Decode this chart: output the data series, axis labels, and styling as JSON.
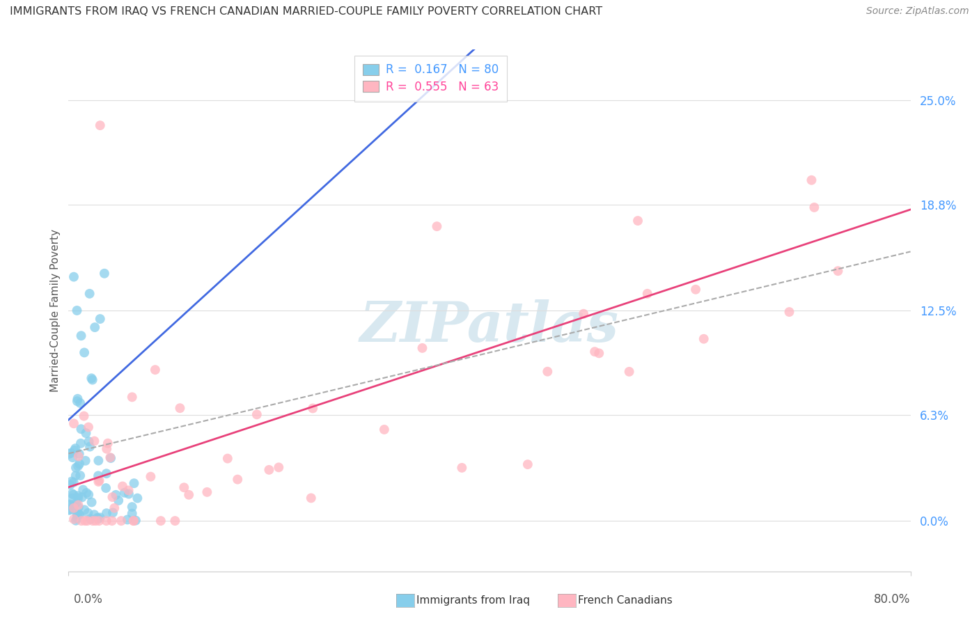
{
  "title": "IMMIGRANTS FROM IRAQ VS FRENCH CANADIAN MARRIED-COUPLE FAMILY POVERTY CORRELATION CHART",
  "source": "Source: ZipAtlas.com",
  "ylabel": "Married-Couple Family Poverty",
  "ytick_values": [
    0.0,
    6.3,
    12.5,
    18.8,
    25.0
  ],
  "blue_R": 0.167,
  "blue_N": 80,
  "pink_R": 0.555,
  "pink_N": 63,
  "xlim": [
    0.0,
    80.0
  ],
  "ylim": [
    -3.0,
    28.0
  ],
  "background_color": "#ffffff",
  "scatter_blue_color": "#87CEEB",
  "scatter_pink_color": "#FFB6C1",
  "line_blue_color": "#4169E1",
  "line_pink_color": "#E8417A",
  "line_dash_color": "#AAAAAA",
  "watermark_text": "ZIPatlas",
  "watermark_color": "#D8E8F0",
  "legend_text_blue": "R =  0.167   N = 80",
  "legend_text_pink": "R =  0.555   N = 63",
  "legend_text_color_blue": "#4499FF",
  "legend_text_color_pink": "#FF4499",
  "ytick_color": "#4499FF",
  "title_color": "#333333",
  "source_color": "#888888"
}
